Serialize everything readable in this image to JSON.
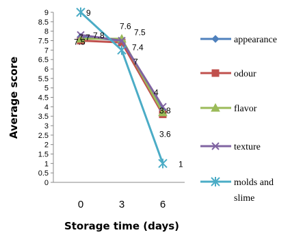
{
  "chart_data": {
    "type": "line",
    "xlabel": "Storage time (days)",
    "ylabel": "Average score",
    "categories": [
      "0",
      "3",
      "6"
    ],
    "ylim": [
      0,
      9
    ],
    "yticks": [
      "0",
      "0.5",
      "1",
      "1.5",
      "2",
      "2.5",
      "3",
      "3.5",
      "4",
      "4.5",
      "5",
      "5.5",
      "6",
      "6.5",
      "7",
      "7.5",
      "8",
      "8.5",
      "9"
    ],
    "grid": false,
    "legend_position": "right",
    "series": [
      {
        "name": "appearance",
        "values": [
          7.7,
          7.5,
          3.8
        ],
        "color": "#4f81bd",
        "marker": "diamond"
      },
      {
        "name": "odour",
        "values": [
          7.5,
          7.4,
          3.6
        ],
        "color": "#c0504d",
        "marker": "square"
      },
      {
        "name": "flavor",
        "values": [
          7.6,
          7.6,
          3.7
        ],
        "color": "#9bbb59",
        "marker": "triangle"
      },
      {
        "name": "texture",
        "values": [
          7.8,
          7.5,
          4.0
        ],
        "color": "#8064a2",
        "marker": "x"
      },
      {
        "name": "molds and slime",
        "values": [
          9.0,
          7.0,
          1.0
        ],
        "color": "#4bacc6",
        "marker": "star"
      }
    ],
    "data_labels": [
      {
        "text": "9",
        "x": "0",
        "y": 9.0
      },
      {
        "text": "7.7",
        "x": "0",
        "y": 7.7
      },
      {
        "text": "7.8",
        "x": "0",
        "y": 7.8
      },
      {
        "text": "7.5",
        "x": "0",
        "y": 7.5
      },
      {
        "text": "7.6",
        "x": "3",
        "y": 7.6
      },
      {
        "text": "7.5",
        "x": "3",
        "y": 7.5
      },
      {
        "text": "7.4",
        "x": "3",
        "y": 7.4
      },
      {
        "text": "7",
        "x": "3",
        "y": 7.0
      },
      {
        "text": "4",
        "x": "6",
        "y": 4.0
      },
      {
        "text": "3.8",
        "x": "6",
        "y": 3.8
      },
      {
        "text": "3.6",
        "x": "6",
        "y": 3.6
      },
      {
        "text": "1",
        "x": "6",
        "y": 1.0
      }
    ]
  }
}
